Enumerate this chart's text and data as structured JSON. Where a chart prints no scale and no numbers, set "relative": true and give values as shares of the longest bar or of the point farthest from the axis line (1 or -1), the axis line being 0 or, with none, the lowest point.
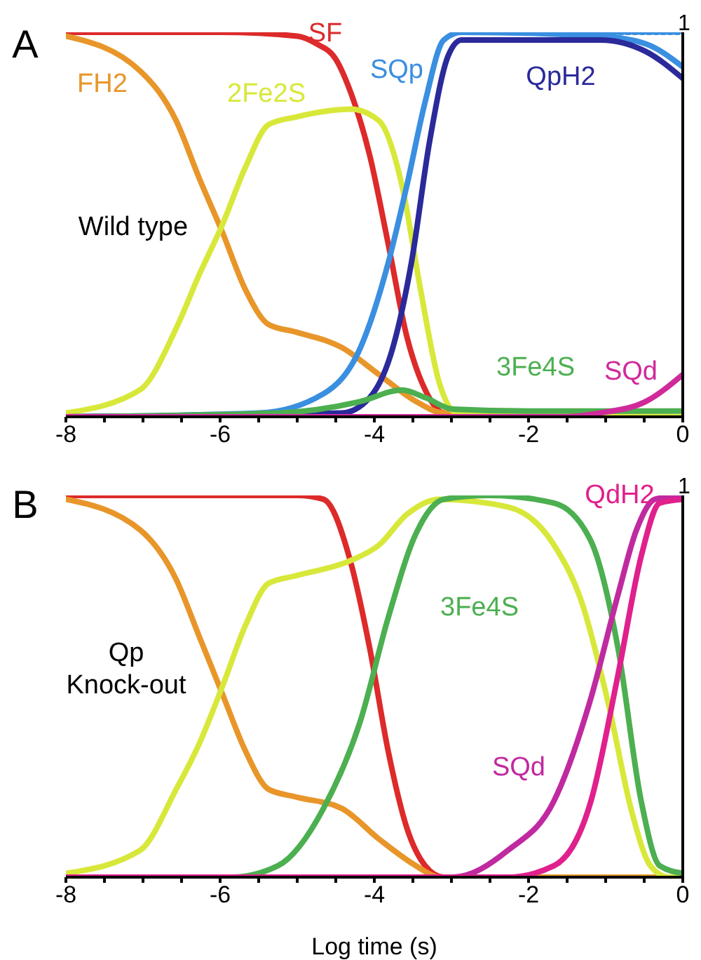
{
  "chart_data": [
    {
      "type": "line",
      "relative": true,
      "marker": "none",
      "line_style": "solid",
      "annotations": [
        "A",
        "Wild type",
        "1"
      ],
      "xlim": [
        -8,
        0
      ],
      "xticks": [
        -8,
        {
          "value": -7.5,
          "label": null
        },
        {
          "value": -7,
          "label": null
        },
        {
          "value": -6.5,
          "label": null
        },
        -6,
        {
          "value": -5.5,
          "label": null
        },
        {
          "value": -5,
          "label": null
        },
        {
          "value": -4.5,
          "label": null
        },
        -4,
        {
          "value": -3.5,
          "label": null
        },
        {
          "value": -3,
          "label": null
        },
        {
          "value": -2.5,
          "label": null
        },
        -2,
        {
          "value": -1.5,
          "label": null
        },
        {
          "value": -1,
          "label": null
        },
        {
          "value": -0.5,
          "label": null
        },
        0
      ],
      "series": [
        {
          "name": "SF",
          "color": "#dd2a2a",
          "x": [
            -8,
            -6,
            -5,
            -4.75,
            -4.5,
            -4.3,
            -4.06,
            -3.82,
            -3.58,
            -3.34,
            -3.1,
            -2.5,
            0
          ],
          "values": [
            1,
            1,
            0.99,
            0.97,
            0.93,
            0.84,
            0.68,
            0.45,
            0.21,
            0.07,
            0.01,
            0,
            0
          ]
        },
        {
          "name": "FH2",
          "color": "#e8962a",
          "x": [
            -8,
            -7.04,
            -6.57,
            -6.27,
            -5.97,
            -5.67,
            -5.37,
            -5.01,
            -4.42,
            -3.94,
            -3.46,
            -3.1,
            0
          ],
          "values": [
            0.99,
            0.9,
            0.77,
            0.62,
            0.48,
            0.33,
            0.24,
            0.22,
            0.18,
            0.11,
            0.04,
            0.01,
            0
          ]
        },
        {
          "name": "2Fe2S",
          "color": "#d8e83a",
          "x": [
            -8,
            -7.04,
            -6.57,
            -6.27,
            -5.97,
            -5.67,
            -5.37,
            -5.01,
            -4.3,
            -3.94,
            -3.64,
            -3.4,
            -3.16,
            -2.93,
            0
          ],
          "values": [
            0.01,
            0.07,
            0.23,
            0.37,
            0.5,
            0.65,
            0.76,
            0.78,
            0.8,
            0.77,
            0.6,
            0.33,
            0.09,
            0.01,
            0
          ]
        },
        {
          "name": "SQp",
          "color": "#3a8fe0",
          "x": [
            -8,
            -5.49,
            -4.66,
            -4.18,
            -3.82,
            -3.58,
            -3.34,
            -3.1,
            -2.87,
            -1.07,
            -0.48,
            0
          ],
          "values": [
            0,
            0.01,
            0.06,
            0.18,
            0.4,
            0.6,
            0.82,
            0.98,
            1,
            0.99,
            0.97,
            0.91
          ]
        },
        {
          "name": "QpH2",
          "color": "#2a2a9a",
          "x": [
            -8,
            -4.42,
            -4.06,
            -3.76,
            -3.52,
            -3.28,
            -3.04,
            -2.87,
            -1.07,
            -0.48,
            0
          ],
          "values": [
            0,
            0.01,
            0.05,
            0.18,
            0.4,
            0.72,
            0.94,
            0.98,
            0.98,
            0.95,
            0.88
          ]
        },
        {
          "color": "#3a8fe0",
          "line_style": "dotted",
          "x": [
            -2,
            -1,
            0
          ],
          "values": [
            1,
            1,
            1
          ]
        },
        {
          "name": "3Fe4S",
          "color": "#4caf50",
          "x": [
            -8,
            -5.25,
            -4.18,
            -3.64,
            -3.34,
            -2.98,
            -2,
            0
          ],
          "values": [
            0,
            0.01,
            0.04,
            0.07,
            0.05,
            0.02,
            0.015,
            0.015
          ]
        },
        {
          "name": "SQd",
          "color": "#d02a9a",
          "x": [
            -8,
            -1.5,
            -1.07,
            -0.48,
            0
          ],
          "values": [
            0,
            0,
            0.01,
            0.04,
            0.11
          ]
        }
      ]
    },
    {
      "type": "line",
      "relative": true,
      "marker": "none",
      "line_style": "solid",
      "xlabel": "Log time (s)",
      "annotations": [
        "B",
        "Qp\nKnock-out",
        "1"
      ],
      "xlim": [
        -8,
        0
      ],
      "xticks": [
        -8,
        {
          "value": -7.5,
          "label": null
        },
        {
          "value": -7,
          "label": null
        },
        {
          "value": -6.5,
          "label": null
        },
        -6,
        {
          "value": -5.5,
          "label": null
        },
        {
          "value": -5,
          "label": null
        },
        {
          "value": -4.5,
          "label": null
        },
        -4,
        {
          "value": -3.5,
          "label": null
        },
        {
          "value": -3,
          "label": null
        },
        {
          "value": -2.5,
          "label": null
        },
        -2,
        {
          "value": -1.5,
          "label": null
        },
        {
          "value": -1,
          "label": null
        },
        {
          "value": -0.5,
          "label": null
        },
        0
      ],
      "series": [
        {
          "color": "#dd2a2a",
          "x": [
            -8,
            -5,
            -4.66,
            -4.3,
            -4.06,
            -3.82,
            -3.58,
            -3.34,
            -3.1,
            0
          ],
          "values": [
            1,
            1,
            0.99,
            0.82,
            0.6,
            0.33,
            0.13,
            0.03,
            0,
            0
          ]
        },
        {
          "color": "#e8962a",
          "x": [
            -8,
            -7.04,
            -6.57,
            -6.27,
            -5.97,
            -5.67,
            -5.37,
            -5.01,
            -4.42,
            -3.94,
            -3.46,
            -3.16,
            0
          ],
          "values": [
            0.99,
            0.91,
            0.78,
            0.63,
            0.48,
            0.33,
            0.23,
            0.21,
            0.18,
            0.1,
            0.03,
            0,
            0
          ]
        },
        {
          "color": "#d8e83a",
          "x": [
            -8,
            -7.04,
            -6.57,
            -6.27,
            -5.97,
            -5.67,
            -5.37,
            -5.01,
            -4.3,
            -3.94,
            -3.58,
            -3.16,
            -2.27,
            -1.67,
            -1.31,
            -0.96,
            -0.66,
            -0.42,
            -0.18,
            0
          ],
          "values": [
            0.01,
            0.07,
            0.23,
            0.35,
            0.5,
            0.66,
            0.77,
            0.79,
            0.83,
            0.87,
            0.95,
            0.99,
            0.97,
            0.87,
            0.72,
            0.45,
            0.17,
            0.03,
            0,
            0
          ]
        },
        {
          "name": "3Fe4S",
          "color": "#4caf50",
          "x": [
            -8,
            -5.85,
            -5.25,
            -4.66,
            -4.18,
            -3.82,
            -3.46,
            -3.1,
            -2.51,
            -1.67,
            -1.19,
            -0.84,
            -0.54,
            -0.3,
            0
          ],
          "values": [
            0,
            0,
            0.03,
            0.18,
            0.41,
            0.68,
            0.9,
            0.99,
            1,
            0.98,
            0.88,
            0.6,
            0.2,
            0.03,
            0.01
          ]
        },
        {
          "name": "SQd",
          "color": "#c02aa0",
          "x": [
            -8,
            -2.98,
            -2.27,
            -1.67,
            -1.19,
            -0.84,
            -0.6,
            -0.36,
            0
          ],
          "values": [
            0,
            0,
            0.07,
            0.2,
            0.47,
            0.74,
            0.91,
            0.99,
            1
          ]
        },
        {
          "name": "QdH2",
          "color": "#e0208c",
          "x": [
            -8,
            -2.27,
            -1.67,
            -1.19,
            -0.84,
            -0.54,
            -0.3,
            0
          ],
          "values": [
            0,
            0,
            0.03,
            0.2,
            0.53,
            0.84,
            0.98,
            0.99
          ]
        }
      ]
    }
  ]
}
